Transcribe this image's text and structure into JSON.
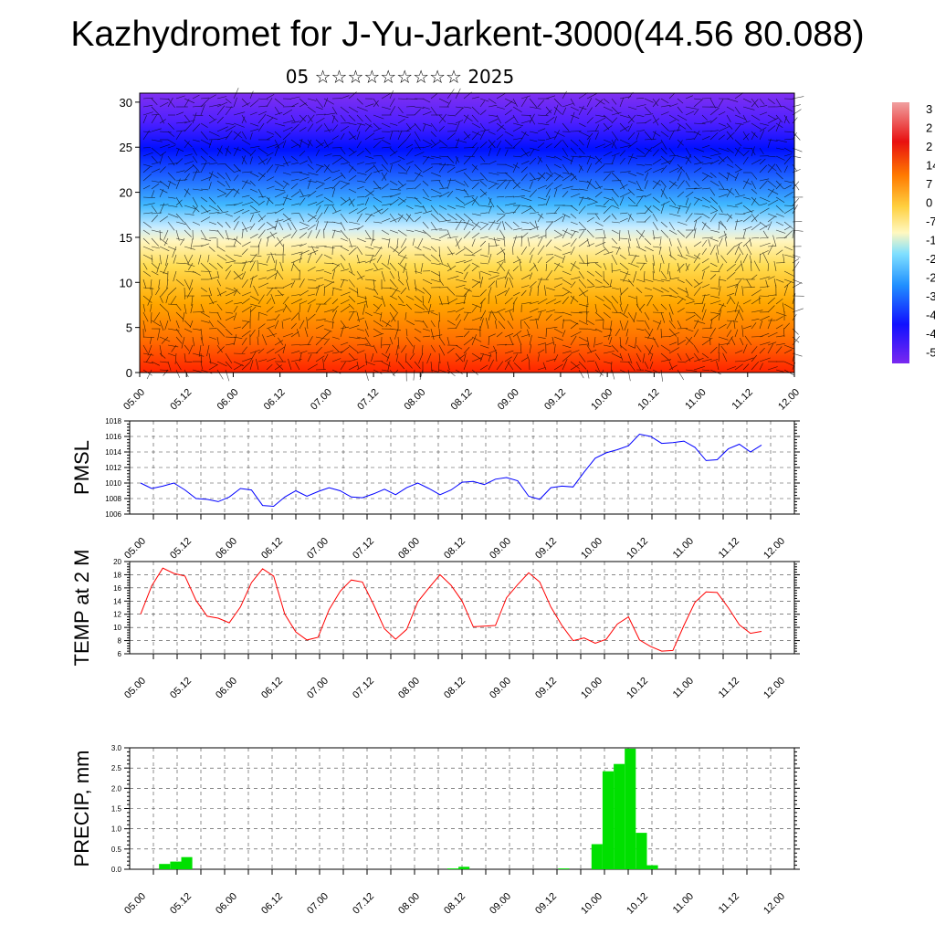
{
  "title": "Kazhydromet for J-Yu-Jarkent-3000(44.56 80.088)",
  "subtitle": "05 ☆☆☆☆☆☆☆☆☆ 2025",
  "colors": {
    "pmsl": "#0000ff",
    "temp": "#ff0000",
    "precip": "#00e000"
  },
  "time_ticks": [
    "05.00",
    "05.12",
    "06.00",
    "06.12",
    "07.00",
    "07.12",
    "08.00",
    "08.12",
    "09.00",
    "09.12",
    "10.00",
    "10.12",
    "11.00",
    "11.12",
    "12.00"
  ],
  "colorbar_labels": [
    "3",
    "2",
    "2",
    "14",
    "7",
    "0",
    "-7",
    "-1",
    "-2",
    "-2",
    "-3",
    "-4",
    "-4",
    "-5"
  ],
  "chart_data": [
    {
      "type": "heatmap",
      "name_hint": "cross-section",
      "x_ticks": [
        "05.00",
        "05.12",
        "06.00",
        "06.12",
        "07.00",
        "07.12",
        "08.00",
        "08.12",
        "09.00",
        "09.12",
        "10.00",
        "10.12",
        "11.00",
        "11.12",
        "12.00"
      ],
      "y_ticks": [
        "0",
        "5",
        "10",
        "15",
        "20",
        "25",
        "30"
      ],
      "ylim": [
        0,
        31
      ],
      "grid": false,
      "legend": "right"
    },
    {
      "type": "line",
      "ylabel": "PMSL",
      "ylim": [
        1006,
        1018
      ],
      "y_ticks": [
        "1006",
        "1008",
        "1010",
        "1012",
        "1014",
        "1016",
        "1018"
      ],
      "x_ticks": [
        "05.00",
        "05.12",
        "06.00",
        "06.12",
        "07.00",
        "07.12",
        "08.00",
        "08.12",
        "09.00",
        "09.12",
        "10.00",
        "10.12",
        "11.00",
        "11.12",
        "12.00"
      ],
      "grid": true,
      "values": [
        1010,
        1009.3,
        1009.6,
        1010,
        1009.1,
        1008,
        1007.9,
        1007.6,
        1008.2,
        1009.3,
        1009.1,
        1007.1,
        1007,
        1008.2,
        1009,
        1008.3,
        1008.9,
        1009.4,
        1009,
        1008.2,
        1008.1,
        1008.6,
        1009.2,
        1008.5,
        1009.4,
        1010,
        1009.3,
        1008.5,
        1009.1,
        1010.1,
        1010.2,
        1009.8,
        1010.5,
        1010.7,
        1010.3,
        1008.3,
        1007.9,
        1009.4,
        1009.6,
        1009.5,
        1011.4,
        1013.2,
        1013.9,
        1014.3,
        1014.8,
        1016.3,
        1016,
        1015.1,
        1015.2,
        1015.4,
        1014.6,
        1012.9,
        1013,
        1014.4,
        1015,
        1014,
        1014.9
      ]
    },
    {
      "type": "line",
      "ylabel": "TEMP at 2 M",
      "ylim": [
        6,
        20
      ],
      "y_ticks": [
        "6",
        "8",
        "10",
        "12",
        "14",
        "16",
        "18",
        "20"
      ],
      "x_ticks": [
        "05.00",
        "05.12",
        "06.00",
        "06.12",
        "07.00",
        "07.12",
        "08.00",
        "08.12",
        "09.00",
        "09.12",
        "10.00",
        "10.12",
        "11.00",
        "11.12",
        "12.00"
      ],
      "grid": true,
      "values": [
        12,
        16.3,
        19,
        18.2,
        17.8,
        14.1,
        11.7,
        11.4,
        10.7,
        13.1,
        16.8,
        18.9,
        17.8,
        12,
        9.3,
        8.1,
        8.5,
        12.7,
        15.5,
        17.2,
        16.9,
        13.5,
        9.8,
        8.2,
        9.7,
        13.9,
        16,
        18,
        16.4,
        14,
        10.1,
        10.2,
        10.3,
        14.5,
        16.5,
        18.3,
        16.9,
        13.1,
        10.3,
        8,
        8.4,
        7.6,
        8.2,
        10.5,
        11.6,
        8.1,
        7.1,
        6.4,
        6.5,
        10.3,
        13.8,
        15.4,
        15.3,
        13,
        10.4,
        9.1,
        9.4
      ]
    },
    {
      "type": "bar",
      "ylabel": "PRECIP, mm",
      "ylim": [
        0,
        3
      ],
      "y_ticks": [
        "0.0",
        "0.5",
        "1.0",
        "1.5",
        "2.0",
        "2.5",
        "3.0"
      ],
      "x_ticks": [
        "05.00",
        "05.12",
        "06.00",
        "06.12",
        "07.00",
        "07.12",
        "08.00",
        "08.12",
        "09.00",
        "09.12",
        "10.00",
        "10.12",
        "11.00",
        "11.12",
        "12.00"
      ],
      "grid": true,
      "values": [
        0,
        0,
        0.13,
        0.19,
        0.3,
        0,
        0,
        0,
        0,
        0,
        0,
        0,
        0,
        0,
        0,
        0,
        0,
        0,
        0,
        0,
        0,
        0,
        0,
        0,
        0,
        0,
        0,
        0,
        0.02,
        0.06,
        0,
        0,
        0,
        0,
        0,
        0,
        0,
        0,
        0.02,
        0,
        0,
        0.62,
        2.42,
        2.6,
        2.98,
        0.9,
        0.1,
        0,
        0,
        0,
        0,
        0,
        0,
        0,
        0,
        0,
        0
      ]
    }
  ]
}
